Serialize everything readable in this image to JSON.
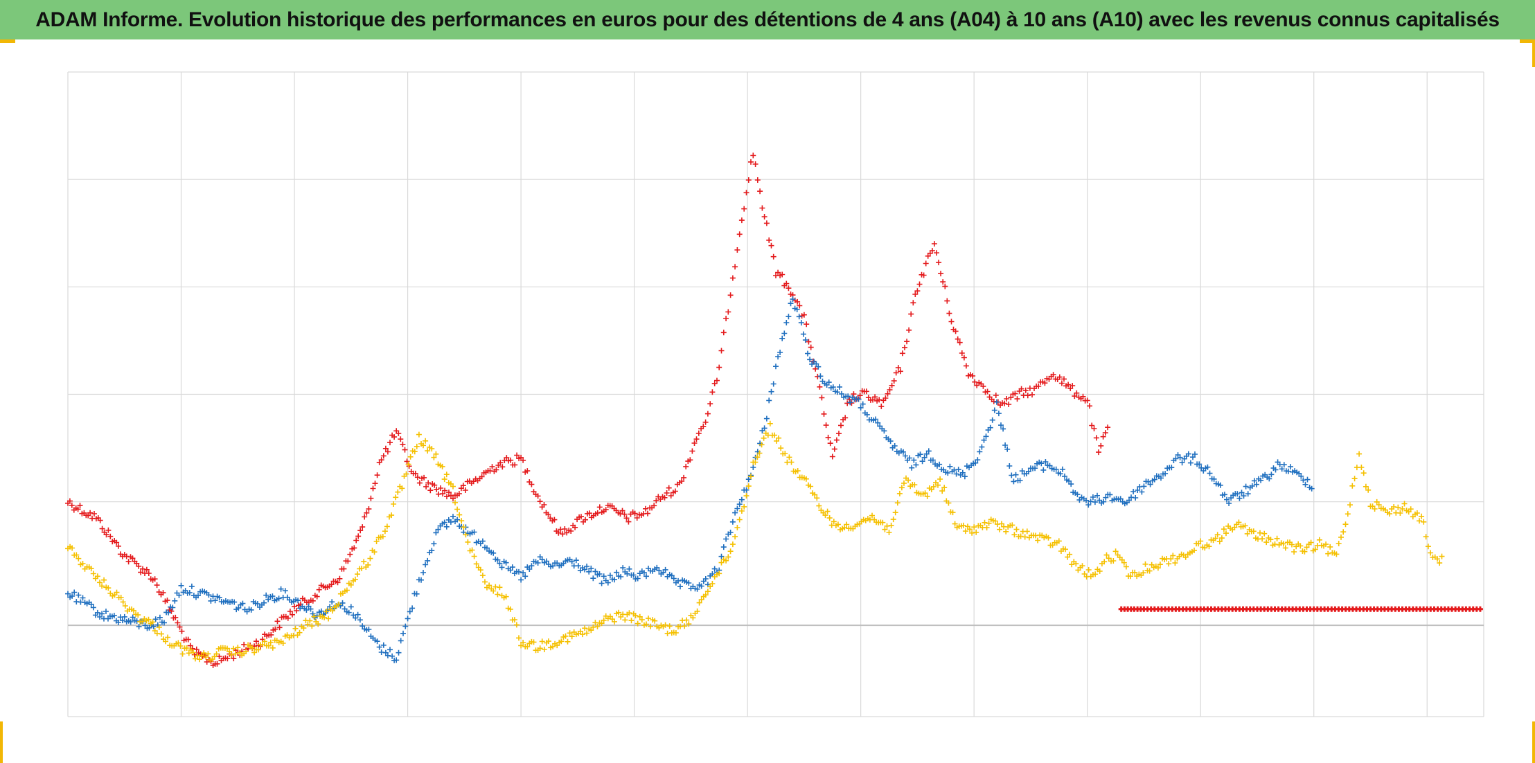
{
  "title": "ADAM Informe. Evolution historique des performances en euros pour des détentions de 4 ans (A04) à 10 ans (A10) avec les revenus connus capitalisés",
  "colors": {
    "title_bg": "#7cc77a",
    "frame_accent": "#f2b705",
    "gridline": "#d9d9d9",
    "zero_line": "#bfbfbf",
    "series_red": "#e41a1c",
    "series_blue": "#1f6fbf",
    "series_yellow": "#f5c000"
  },
  "chart_data": {
    "type": "scatter",
    "title": "ADAM Informe. Evolution historique des performances en euros pour des détentions de 4 ans (A04) à 10 ans (A10) avec les revenus connus capitalisés",
    "xlabel": "",
    "ylabel": "",
    "tick_labels_visible": false,
    "legend": "none",
    "grid": true,
    "marker": "+",
    "x_range": [
      0,
      12.5
    ],
    "y_range": [
      -0.85,
      5.15
    ],
    "x_gridlines": [
      0,
      1,
      2,
      3,
      4,
      5,
      6,
      7,
      8,
      9,
      10,
      11,
      12,
      12.5
    ],
    "y_gridlines": [
      -0.85,
      0,
      1.15,
      2.15,
      3.15,
      4.15,
      5.15
    ],
    "zero_line_y": 0,
    "series": [
      {
        "color": "red",
        "x": [
          0.0,
          0.25,
          0.5,
          0.75,
          0.95,
          1.1,
          1.3,
          1.5,
          1.7,
          1.85,
          2.0,
          2.2,
          2.4,
          2.6,
          2.75,
          2.9,
          3.05,
          3.2,
          3.4,
          3.6,
          3.8,
          4.0,
          4.15,
          4.35,
          4.55,
          4.75,
          4.95,
          5.1,
          5.25,
          5.4,
          5.55,
          5.65,
          5.75,
          5.85,
          5.95,
          6.05,
          6.15,
          6.25,
          6.4,
          6.5,
          6.6,
          6.75,
          6.9,
          7.05,
          7.2,
          7.35,
          7.5,
          7.65,
          7.8,
          7.95,
          8.1,
          8.25,
          8.4,
          8.55,
          8.7,
          8.85,
          9.0,
          9.1,
          9.2
        ],
        "y": [
          1.15,
          1.0,
          0.65,
          0.45,
          0.05,
          -0.25,
          -0.35,
          -0.25,
          -0.15,
          0.0,
          0.15,
          0.3,
          0.45,
          0.9,
          1.5,
          1.8,
          1.4,
          1.3,
          1.2,
          1.35,
          1.5,
          1.55,
          1.2,
          0.85,
          1.0,
          1.1,
          1.0,
          1.05,
          1.2,
          1.3,
          1.75,
          1.95,
          2.4,
          3.1,
          3.8,
          4.4,
          3.8,
          3.3,
          3.1,
          2.85,
          2.4,
          1.55,
          2.1,
          2.15,
          2.05,
          2.4,
          3.15,
          3.55,
          2.85,
          2.35,
          2.2,
          2.05,
          2.15,
          2.2,
          2.35,
          2.2,
          2.1,
          1.6,
          1.9
        ]
      },
      {
        "color": "red",
        "x": [
          9.3,
          9.5,
          9.75,
          10.0,
          10.25,
          10.5,
          10.75,
          11.0,
          11.25,
          11.5,
          11.75,
          12.0,
          12.25,
          12.5
        ],
        "y": [
          0.15,
          0.15,
          0.15,
          0.15,
          0.15,
          0.15,
          0.15,
          0.15,
          0.15,
          0.15,
          0.15,
          0.15,
          0.15,
          0.15
        ]
      },
      {
        "color": "blue",
        "x": [
          0.0,
          0.15,
          0.3,
          0.5,
          0.7,
          0.85,
          1.0,
          1.15,
          1.3,
          1.45,
          1.6,
          1.75,
          1.9,
          2.05,
          2.2,
          2.35,
          2.5,
          2.6,
          2.75,
          2.9,
          3.0,
          3.1,
          3.25,
          3.4,
          3.55,
          3.7,
          3.85,
          4.0,
          4.15,
          4.3,
          4.45,
          4.6,
          4.75,
          4.9,
          5.05,
          5.2,
          5.35,
          5.5,
          5.65,
          5.75,
          5.85,
          5.95,
          6.05,
          6.15,
          6.25,
          6.4,
          6.55,
          6.7,
          6.85,
          7.0,
          7.15,
          7.3,
          7.45,
          7.6,
          7.75,
          7.9,
          8.05,
          8.2,
          8.35,
          8.5,
          8.65,
          8.8,
          8.95,
          9.05,
          9.2,
          9.35,
          9.5,
          9.65,
          9.8,
          9.95,
          10.1,
          10.25,
          10.4,
          10.55,
          10.7,
          10.85,
          11.0
        ],
        "y": [
          0.3,
          0.2,
          0.1,
          0.05,
          0.0,
          0.05,
          0.35,
          0.3,
          0.25,
          0.2,
          0.15,
          0.25,
          0.3,
          0.2,
          0.1,
          0.2,
          0.15,
          0.0,
          -0.2,
          -0.3,
          0.05,
          0.4,
          0.85,
          1.0,
          0.85,
          0.75,
          0.55,
          0.45,
          0.6,
          0.55,
          0.6,
          0.5,
          0.4,
          0.5,
          0.45,
          0.55,
          0.4,
          0.35,
          0.4,
          0.55,
          0.9,
          1.2,
          1.45,
          1.85,
          2.4,
          3.05,
          2.5,
          2.25,
          2.15,
          2.05,
          1.85,
          1.65,
          1.5,
          1.6,
          1.45,
          1.4,
          1.6,
          2.05,
          1.35,
          1.45,
          1.5,
          1.4,
          1.15,
          1.15,
          1.2,
          1.15,
          1.3,
          1.4,
          1.55,
          1.55,
          1.4,
          1.15,
          1.25,
          1.35,
          1.5,
          1.4,
          1.3
        ]
      },
      {
        "color": "yellow",
        "x": [
          0.0,
          0.15,
          0.3,
          0.45,
          0.6,
          0.75,
          0.9,
          1.05,
          1.2,
          1.35,
          1.5,
          1.7,
          1.9,
          2.1,
          2.3,
          2.5,
          2.65,
          2.8,
          2.95,
          3.1,
          3.25,
          3.4,
          3.55,
          3.7,
          3.85,
          4.0,
          4.15,
          4.3,
          4.45,
          4.6,
          4.75,
          4.9,
          5.05,
          5.2,
          5.35,
          5.5,
          5.65,
          5.75,
          5.85,
          5.95,
          6.05,
          6.2,
          6.35,
          6.5,
          6.65,
          6.8,
          6.95,
          7.1,
          7.25,
          7.4,
          7.55,
          7.7,
          7.85,
          8.0,
          8.15,
          8.3,
          8.45,
          8.6,
          8.75,
          8.9,
          9.05,
          9.15,
          9.25,
          9.4,
          9.55,
          9.7,
          9.85,
          10.0,
          10.15,
          10.3,
          10.45,
          10.6,
          10.75,
          10.9,
          11.05,
          11.2,
          11.3,
          11.4,
          11.5,
          11.65,
          11.8,
          11.95,
          12.05,
          12.15
        ],
        "y": [
          0.75,
          0.55,
          0.4,
          0.25,
          0.1,
          0.0,
          -0.15,
          -0.25,
          -0.3,
          -0.25,
          -0.25,
          -0.2,
          -0.15,
          0.0,
          0.1,
          0.4,
          0.6,
          0.9,
          1.3,
          1.75,
          1.55,
          1.25,
          0.7,
          0.35,
          0.3,
          -0.15,
          -0.2,
          -0.15,
          -0.1,
          -0.05,
          0.05,
          0.1,
          0.05,
          0.0,
          -0.05,
          0.05,
          0.35,
          0.5,
          0.7,
          1.05,
          1.5,
          1.85,
          1.55,
          1.35,
          1.1,
          0.9,
          0.95,
          1.0,
          0.9,
          1.35,
          1.2,
          1.35,
          0.9,
          0.9,
          0.95,
          0.9,
          0.85,
          0.8,
          0.75,
          0.55,
          0.45,
          0.6,
          0.65,
          0.45,
          0.55,
          0.6,
          0.65,
          0.75,
          0.8,
          0.95,
          0.85,
          0.8,
          0.75,
          0.7,
          0.75,
          0.65,
          1.05,
          1.6,
          1.15,
          1.05,
          1.1,
          1.0,
          0.6,
          0.6
        ]
      }
    ]
  }
}
